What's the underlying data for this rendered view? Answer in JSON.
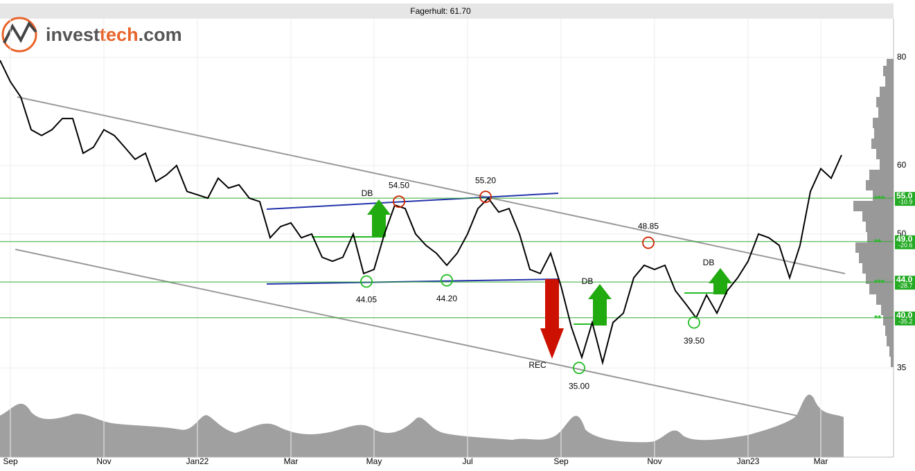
{
  "header": {
    "title": "Fagerhult: 61.70"
  },
  "logo": [
    "invest",
    "tech",
    ".com"
  ],
  "chart_data": {
    "type": "line",
    "log_scale": true,
    "grid": true,
    "color": "#000000",
    "categories": [
      null,
      "Sep",
      null,
      null,
      null,
      null,
      null,
      null,
      null,
      null,
      "Nov",
      null,
      null,
      null,
      null,
      null,
      null,
      null,
      null,
      "Jan22",
      null,
      null,
      null,
      null,
      null,
      null,
      null,
      null,
      "Mar",
      null,
      null,
      null,
      null,
      null,
      null,
      null,
      "May",
      null,
      null,
      null,
      null,
      null,
      null,
      null,
      null,
      "Jul",
      null,
      null,
      null,
      null,
      null,
      null,
      null,
      null,
      "Sep",
      null,
      null,
      null,
      null,
      null,
      null,
      null,
      null,
      "Nov",
      null,
      null,
      null,
      null,
      null,
      null,
      null,
      null,
      "Jan23",
      null,
      null,
      null,
      null,
      null,
      null,
      "Mar",
      null,
      null
    ],
    "values": [
      79.4,
      75,
      72,
      66,
      65,
      66,
      68,
      68,
      62,
      63,
      66,
      65,
      63,
      61,
      62,
      57.5,
      58.5,
      60,
      56,
      55.5,
      55,
      58,
      56.5,
      57,
      55,
      54.5,
      49.5,
      51,
      51.5,
      49.5,
      50,
      47,
      46.5,
      47,
      50,
      45,
      45.5,
      50,
      54,
      53.5,
      50,
      48.5,
      47.5,
      46,
      47.5,
      50,
      53.5,
      55,
      53,
      53.5,
      50,
      45.5,
      45,
      47.5,
      43.5,
      39,
      36,
      39.5,
      35.5,
      39.5,
      40.5,
      44.5,
      46,
      45.5,
      46,
      43,
      41.5,
      40,
      42.5,
      40.5,
      43,
      44.5,
      46.5,
      50,
      49.5,
      48.5,
      44.5,
      48.5,
      56,
      59.5,
      58,
      61.7
    ],
    "ylim": [
      27.6,
      88.7
    ],
    "yticks": [
      35,
      50,
      60,
      80
    ],
    "levels": [
      {
        "value": 55,
        "label": "55.0",
        "change": -10.9,
        "stars": "***"
      },
      {
        "value": 49,
        "label": "49.0",
        "change": -20.6,
        "stars": "**"
      },
      {
        "value": 44,
        "label": "44.0",
        "change": -28.7,
        "stars": "***"
      },
      {
        "value": 40,
        "label": "40.0",
        "change": -35.2,
        "stars": "**"
      }
    ],
    "points": {
      "values": [
        54.5,
        55.2,
        48.85,
        44.05,
        44.2,
        35,
        39.5
      ],
      "value_labels": [
        "54.50",
        "55.20",
        "48.85",
        "44.05",
        "44.20",
        "35.00",
        "39.50"
      ],
      "colors": [
        "#cc2200",
        "#cc2200",
        "#cc2200",
        "#22bb22",
        "#22bb22",
        "#22bb22",
        "#22bb22"
      ]
    },
    "signals": [
      "DB",
      "DB",
      "REC",
      "DB"
    ]
  }
}
